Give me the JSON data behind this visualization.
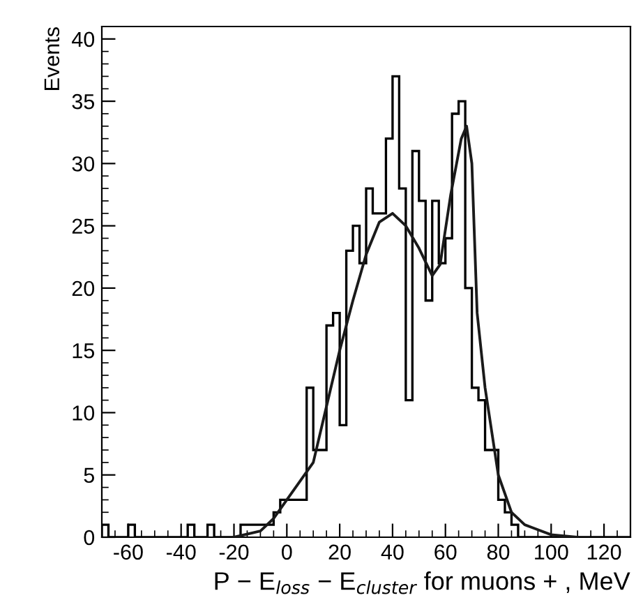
{
  "chart_data": {
    "type": "histogram",
    "xlabel": "P − E$_{loss}$ − E$_{cluster}$ for muons + , MeV",
    "ylabel": "Events",
    "color": "#000000",
    "bins": [
      -70,
      -67.5,
      -65,
      -62.5,
      -60,
      -57.5,
      -55,
      -52.5,
      -50,
      -47.5,
      -45,
      -42.5,
      -40,
      -37.5,
      -35,
      -32.5,
      -30,
      -27.5,
      -25,
      -22.5,
      -20,
      -17.5,
      -15,
      -12.5,
      -10,
      -7.5,
      -5,
      -2.5,
      0,
      2.5,
      5,
      7.5,
      10,
      12.5,
      15,
      17.5,
      20,
      22.5,
      25,
      27.5,
      30,
      32.5,
      35,
      37.5,
      40,
      42.5,
      45,
      47.5,
      50,
      52.5,
      55,
      57.5,
      60,
      62.5,
      65,
      67.5,
      70,
      72.5,
      75,
      77.5,
      80,
      82.5,
      85,
      87.5,
      90,
      92.5,
      95,
      97.5,
      100,
      102.5,
      105,
      107.5,
      110,
      112.5,
      115,
      117.5,
      120,
      122.5,
      125,
      127.5,
      130
    ],
    "values": [
      1,
      0,
      0,
      0,
      1,
      0,
      0,
      0,
      0,
      0,
      0,
      0,
      0,
      1,
      0,
      0,
      1,
      0,
      0,
      0,
      0,
      1,
      1,
      1,
      1,
      1,
      2,
      3,
      3,
      3,
      3,
      12,
      7,
      7,
      17,
      18,
      9,
      23,
      25,
      22,
      28,
      26,
      26,
      32,
      37,
      28,
      11,
      31,
      27,
      19,
      27,
      22,
      24,
      34,
      35,
      20,
      12,
      11,
      7,
      7,
      3,
      2,
      1,
      0,
      0,
      0,
      0,
      0,
      0,
      0,
      0,
      0,
      0,
      0,
      0,
      0,
      0,
      0,
      0,
      0
    ],
    "series": [
      {
        "type": "line",
        "color": "#1a1a1a",
        "x": [
          -20,
          -10,
          -5,
          0,
          5,
          10,
          15,
          20,
          25,
          30,
          35,
          40,
          45,
          50,
          55,
          58,
          62,
          66,
          68,
          70,
          72,
          75,
          80,
          85,
          90,
          100,
          110
        ],
        "values": [
          0,
          0.5,
          1.5,
          3,
          4.5,
          6,
          10.5,
          15,
          19,
          22.7,
          25.3,
          26,
          25,
          23.2,
          21,
          21.9,
          27.5,
          32,
          33,
          30,
          18,
          12,
          5,
          2,
          1,
          0.2,
          0
        ]
      }
    ],
    "xlim": [
      -70,
      130
    ],
    "ylim": [
      0,
      41
    ],
    "xticks": [
      -60,
      -40,
      -20,
      0,
      20,
      40,
      60,
      80,
      100,
      120
    ],
    "yticks": [
      0,
      5,
      10,
      15,
      20,
      25,
      30,
      35,
      40
    ],
    "grid": false,
    "legend": false
  }
}
